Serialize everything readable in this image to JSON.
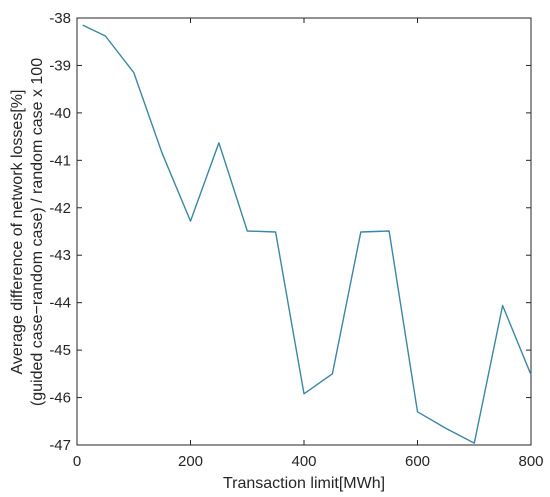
{
  "chart_data": {
    "type": "line",
    "title": "",
    "xlabel": "Transaction limit[MWh]",
    "ylabel_line1": "Average difference of network losses[%]",
    "ylabel_line2": "(guided case−random case) / random case x 100",
    "xlim": [
      0,
      800
    ],
    "ylim": [
      -47,
      -38
    ],
    "xticks": [
      0,
      200,
      400,
      600,
      800
    ],
    "yticks": [
      -38,
      -39,
      -40,
      -41,
      -42,
      -43,
      -44,
      -45,
      -46,
      -47
    ],
    "grid": false,
    "series": [
      {
        "color": "#3a87a5",
        "x": [
          10,
          50,
          100,
          150,
          200,
          250,
          300,
          350,
          400,
          450,
          500,
          550,
          600,
          650,
          700,
          750,
          800
        ],
        "y": [
          -38.15,
          -38.38,
          -39.15,
          -40.85,
          -42.28,
          -40.63,
          -42.49,
          -42.51,
          -45.92,
          -45.5,
          -42.51,
          -42.49,
          -46.3,
          -46.65,
          -46.96,
          -44.06,
          -45.52
        ]
      }
    ]
  }
}
